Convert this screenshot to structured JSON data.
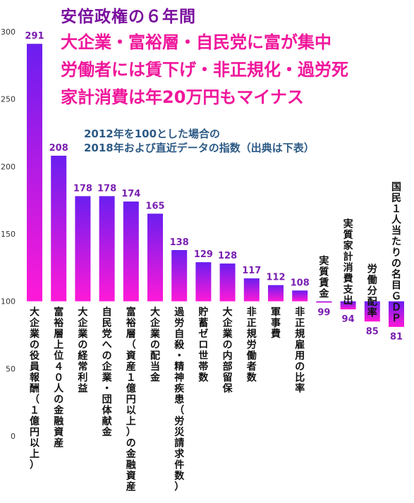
{
  "header": {
    "title": "安倍政権の６年間",
    "headline_lines": [
      "大企業・富裕層・自民党に富が集中",
      "労働者には賃下げ・非正規化・過労死",
      "家計消費は年20万円もマイナス"
    ],
    "note_lines": [
      "2012年を100とした場合の",
      "2018年および直近データの指数（出典は下表）"
    ]
  },
  "chart_data": {
    "type": "bar",
    "title": "安倍政権の６年間",
    "subtitle": "2012年を100とした場合の2018年および直近データの指数（出典は下表）",
    "categories": [
      "大企業の役員報酬（１億円以上）",
      "富裕層上位４０人の金融資産",
      "大企業の経常利益",
      "自民党への企業・団体献金",
      "富裕層（資産１億円以上）の金融資産",
      "大企業の配当金",
      "過労自殺・精神疾患（労災請求件数）",
      "貯蓄ゼロ世帯数",
      "大企業の内部留保",
      "非正規労働者数",
      "軍事費",
      "非正規雇用の比率",
      "実質賃金",
      "実質家計消費支出",
      "労働分配率",
      "国民１人当たりの名目ＧＤＰ"
    ],
    "values": [
      291,
      208,
      178,
      178,
      174,
      165,
      138,
      129,
      128,
      117,
      112,
      108,
      99,
      94,
      85,
      81
    ],
    "baseline": 100,
    "ylim": [
      0,
      300
    ],
    "yticks": [
      0,
      50,
      100,
      150,
      200,
      250,
      300
    ],
    "grid": false,
    "legend": "none",
    "colors": {
      "bar_top": "#6a1ef0",
      "bar_bottom": "#ff19d8",
      "value_label": "#7a1fb0",
      "category_label": "#111111",
      "axis_tick": "#333333",
      "title": "#7a0f9e",
      "headline": "#f0169b",
      "note": "#2d5a85"
    }
  }
}
